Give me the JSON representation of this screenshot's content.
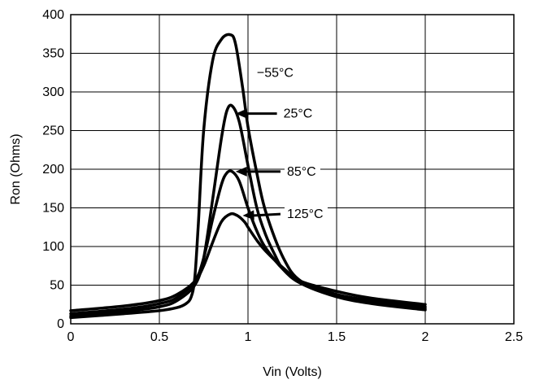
{
  "chart_data": {
    "type": "line",
    "title": "",
    "xlabel": "Vin (Volts)",
    "ylabel": "Ron (Ohms)",
    "xlim": [
      0,
      2.5
    ],
    "ylim": [
      0,
      400
    ],
    "xticks": [
      0,
      0.5,
      1,
      1.5,
      2,
      2.5
    ],
    "xtick_labels": [
      "0",
      "0.5",
      "1",
      "1.5",
      "2",
      "2.5"
    ],
    "yticks": [
      0,
      50,
      100,
      150,
      200,
      250,
      300,
      350,
      400
    ],
    "ytick_labels": [
      "0",
      "50",
      "100",
      "150",
      "200",
      "250",
      "300",
      "350",
      "400"
    ],
    "grid": true,
    "series": [
      {
        "name": "−55°C",
        "x": [
          0,
          0.3,
          0.5,
          0.6,
          0.65,
          0.68,
          0.7,
          0.72,
          0.75,
          0.8,
          0.85,
          0.9,
          0.93,
          0.97,
          1.0,
          1.05,
          1.1,
          1.2,
          1.3,
          1.5,
          1.7,
          2.0
        ],
        "y": [
          8,
          13,
          17,
          21,
          26,
          35,
          60,
          130,
          250,
          340,
          368,
          374,
          362,
          305,
          255,
          195,
          145,
          85,
          55,
          38,
          28,
          20
        ]
      },
      {
        "name": "25°C",
        "x": [
          0,
          0.3,
          0.5,
          0.6,
          0.7,
          0.75,
          0.8,
          0.85,
          0.88,
          0.91,
          0.95,
          1.0,
          1.05,
          1.1,
          1.15,
          1.2,
          1.3,
          1.5,
          1.7,
          2.0
        ],
        "y": [
          10,
          16,
          22,
          30,
          50,
          85,
          160,
          240,
          275,
          282,
          262,
          205,
          150,
          115,
          90,
          70,
          52,
          35,
          26,
          18
        ]
      },
      {
        "name": "85°C",
        "x": [
          0,
          0.3,
          0.5,
          0.6,
          0.7,
          0.75,
          0.8,
          0.85,
          0.88,
          0.91,
          0.95,
          1.0,
          1.05,
          1.1,
          1.2,
          1.3,
          1.5,
          1.7,
          2.0
        ],
        "y": [
          13,
          19,
          26,
          34,
          55,
          85,
          135,
          180,
          195,
          197,
          185,
          150,
          120,
          98,
          70,
          53,
          38,
          30,
          22
        ]
      },
      {
        "name": "125°C",
        "x": [
          0,
          0.3,
          0.5,
          0.6,
          0.7,
          0.75,
          0.8,
          0.85,
          0.9,
          0.94,
          0.98,
          1.0,
          1.05,
          1.1,
          1.2,
          1.3,
          1.5,
          1.7,
          2.0
        ],
        "y": [
          17,
          23,
          30,
          38,
          55,
          75,
          105,
          132,
          142,
          140,
          132,
          125,
          108,
          94,
          72,
          55,
          42,
          33,
          25
        ]
      }
    ],
    "annotations": [
      {
        "text": "−55°C",
        "x": 1.05,
        "y": 325,
        "arrow": false
      },
      {
        "text": "25°C",
        "x": 1.2,
        "y": 272,
        "arrow_to": [
          0.93,
          272
        ]
      },
      {
        "text": "85°C",
        "x": 1.22,
        "y": 197,
        "arrow_to": [
          0.93,
          197
        ]
      },
      {
        "text": "125°C",
        "x": 1.22,
        "y": 142,
        "arrow_to": [
          0.97,
          140
        ]
      }
    ]
  }
}
